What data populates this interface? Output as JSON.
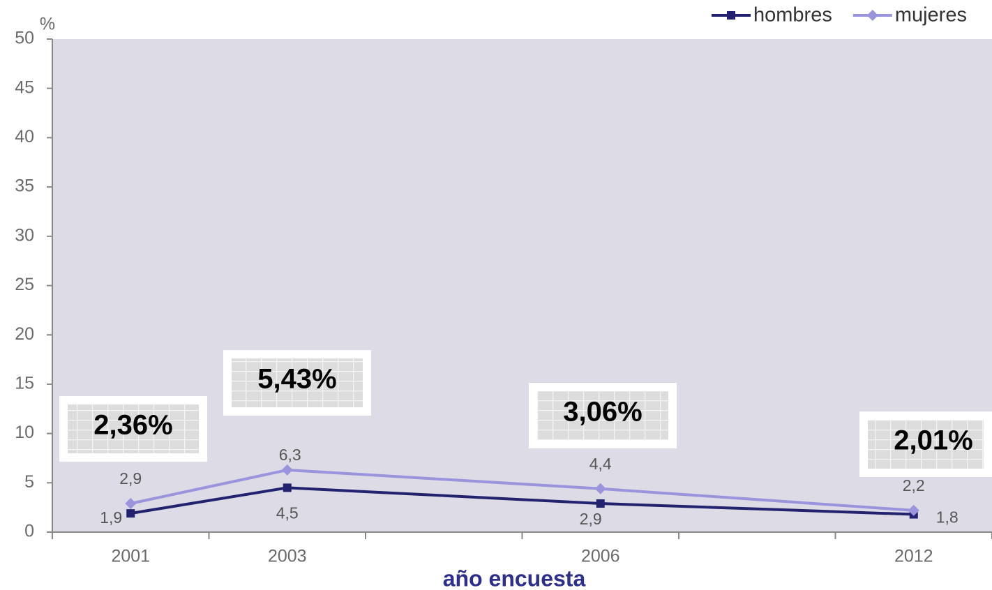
{
  "chart_data": {
    "type": "line",
    "y_label": "%",
    "x_label": "año encuesta",
    "categories": [
      "2001",
      "2003",
      null,
      "2006",
      null,
      "2012"
    ],
    "series": [
      {
        "name": "hombres",
        "color": "#22226e",
        "marker": "square",
        "values": [
          1.9,
          4.5,
          null,
          2.9,
          null,
          1.8
        ],
        "value_labels": [
          "1,9",
          "4,5",
          null,
          "2,9",
          null,
          "1,8"
        ]
      },
      {
        "name": "mujeres",
        "color": "#9a94dc",
        "marker": "diamond",
        "values": [
          2.9,
          6.3,
          null,
          4.4,
          null,
          2.2
        ],
        "value_labels": [
          "2,9",
          "6,3",
          null,
          "4,4",
          null,
          "2,2"
        ]
      }
    ],
    "annotations": [
      "2,36%",
      "5,43%",
      "3,06%",
      "2,01%"
    ],
    "ylim": [
      0,
      50
    ],
    "yticks": [
      0,
      5,
      10,
      15,
      20,
      25,
      30,
      35,
      40,
      45,
      50
    ],
    "legend": "top-right"
  }
}
